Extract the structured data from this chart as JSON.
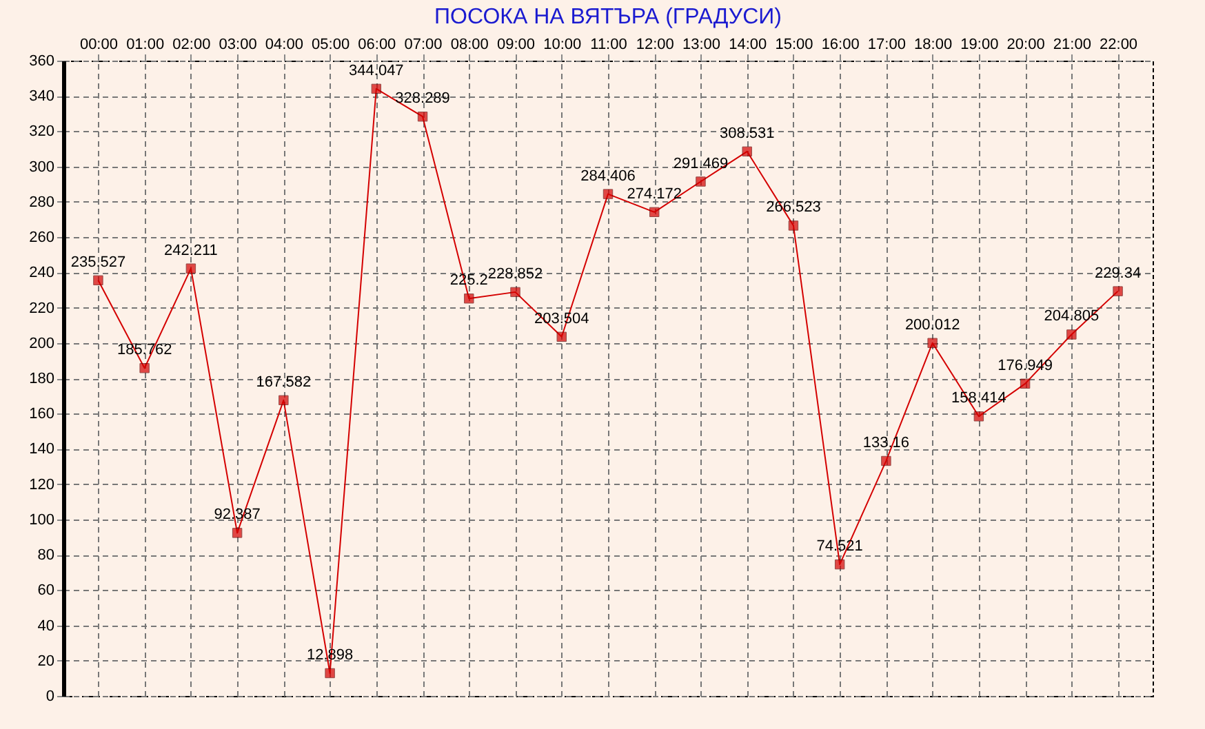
{
  "chart_data": {
    "type": "line",
    "title": "ПОСОКА НА ВЯТЪРА    (ГРАДУСИ)",
    "categories": [
      "00:00",
      "01:00",
      "02:00",
      "03:00",
      "04:00",
      "05:00",
      "06:00",
      "07:00",
      "08:00",
      "09:00",
      "10:00",
      "11:00",
      "12:00",
      "13:00",
      "14:00",
      "15:00",
      "16:00",
      "17:00",
      "18:00",
      "19:00",
      "20:00",
      "21:00",
      "22:00"
    ],
    "values": [
      235.527,
      185.762,
      242.211,
      92.387,
      167.582,
      12.898,
      344.047,
      328.289,
      225.2,
      228.852,
      203.504,
      284.406,
      274.172,
      291.469,
      308.531,
      266.523,
      74.521,
      133.16,
      200.012,
      158.414,
      176.949,
      204.805,
      229.34
    ],
    "color": "#d40000",
    "ylim": [
      0,
      360
    ],
    "yticks": [
      0,
      20,
      40,
      60,
      80,
      100,
      120,
      140,
      160,
      180,
      200,
      220,
      240,
      260,
      280,
      300,
      320,
      340,
      360
    ],
    "grid": true,
    "marker": "square",
    "line_style": "solid",
    "data_labels": true
  }
}
